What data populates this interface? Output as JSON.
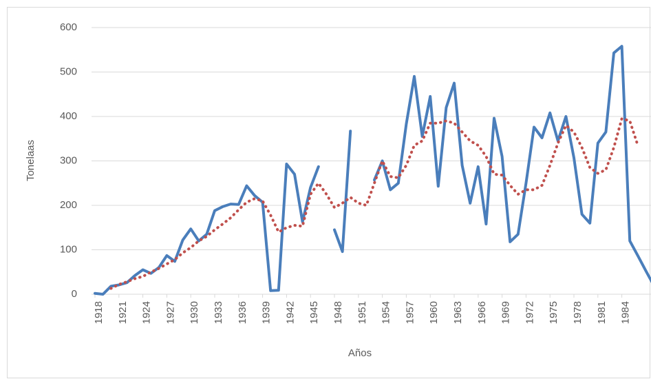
{
  "chart_data": {
    "type": "line",
    "y_label": "Tonelaas",
    "x_label": "Años",
    "x": [
      1918,
      1919,
      1920,
      1921,
      1922,
      1923,
      1924,
      1925,
      1926,
      1927,
      1928,
      1929,
      1930,
      1931,
      1932,
      1933,
      1934,
      1935,
      1936,
      1937,
      1938,
      1939,
      1940,
      1941,
      1942,
      1943,
      1944,
      1945,
      1946,
      1947,
      1948,
      1949,
      1950,
      1951,
      1952,
      1953,
      1954,
      1955,
      1956,
      1957,
      1958,
      1959,
      1960,
      1961,
      1962,
      1963,
      1964,
      1965,
      1966,
      1967,
      1968,
      1969,
      1970,
      1971,
      1972,
      1973,
      1974,
      1975,
      1976,
      1977,
      1978,
      1979,
      1980,
      1981,
      1982,
      1983,
      1984,
      1985,
      1986,
      1987,
      1988
    ],
    "series": [
      {
        "color": "#4a7ebb",
        "style": "solid",
        "values": [
          2,
          0,
          18,
          21,
          26,
          42,
          55,
          47,
          60,
          87,
          74,
          122,
          147,
          120,
          135,
          188,
          197,
          203,
          202,
          244,
          222,
          207,
          8,
          9,
          293,
          270,
          163,
          240,
          287,
          null,
          145,
          96,
          367,
          null,
          null,
          257,
          300,
          235,
          250,
          383,
          490,
          355,
          445,
          243,
          420,
          475,
          290,
          205,
          287,
          158,
          396,
          310,
          118,
          135,
          250,
          376,
          352,
          408,
          345,
          400,
          307,
          180,
          160,
          340,
          365,
          543,
          558,
          120,
          87,
          53,
          20
        ]
      },
      {
        "color": "#c0504d",
        "style": "dotted",
        "values": [
          null,
          null,
          13,
          22,
          28,
          35,
          40,
          50,
          58,
          68,
          78,
          93,
          105,
          120,
          130,
          145,
          158,
          172,
          190,
          207,
          215,
          210,
          178,
          140,
          150,
          155,
          153,
          225,
          250,
          225,
          195,
          205,
          218,
          205,
          200,
          250,
          300,
          265,
          262,
          290,
          335,
          345,
          385,
          385,
          390,
          385,
          365,
          345,
          335,
          310,
          270,
          268,
          245,
          225,
          235,
          235,
          245,
          290,
          340,
          380,
          365,
          330,
          285,
          272,
          280,
          330,
          395,
          390,
          335,
          null,
          null
        ]
      }
    ],
    "xlim": [
      1918,
      1988
    ],
    "xticks": [
      1918,
      1921,
      1924,
      1927,
      1930,
      1933,
      1936,
      1939,
      1942,
      1945,
      1948,
      1951,
      1954,
      1957,
      1960,
      1963,
      1966,
      1969,
      1972,
      1975,
      1978,
      1981,
      1984
    ],
    "ylim": [
      0,
      600
    ],
    "yticks": [
      0,
      100,
      200,
      300,
      400,
      500,
      600
    ],
    "grid": true
  }
}
